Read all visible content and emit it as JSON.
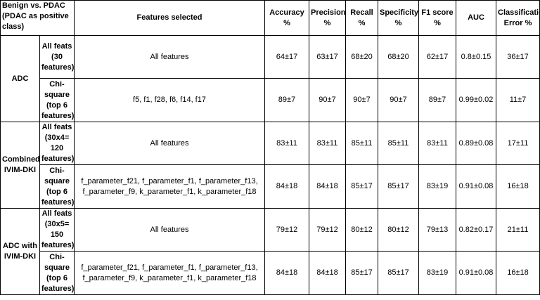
{
  "table": {
    "corner_header": "Benign vs. PDAC (PDAC as positive class)",
    "columns": {
      "features": "Features selected",
      "accuracy": "Accuracy %",
      "precision": "Precision %",
      "recall": "Recall %",
      "specificity": "Specificity %",
      "f1": "F1 score %",
      "auc": "AUC",
      "error": "Classification Error %"
    },
    "groups": [
      {
        "name": "ADC",
        "rows": [
          {
            "subset": "All feats (30 features)",
            "features": "All features",
            "accuracy": "64±17",
            "precision": "63±17",
            "recall": "68±20",
            "specificity": "68±20",
            "f1": "62±17",
            "auc": "0.8±0.15",
            "error": "36±17"
          },
          {
            "subset": "Chi-square (top 6 features)",
            "features": "f5, f1, f28, f6, f14, f17",
            "accuracy": "89±7",
            "precision": "90±7",
            "recall": "90±7",
            "specificity": "90±7",
            "f1": "89±7",
            "auc": "0.99±0.02",
            "error": "11±7"
          }
        ]
      },
      {
        "name": "Combined IVIM-DKI",
        "rows": [
          {
            "subset": "All feats (30x4= 120 features)",
            "features": "All features",
            "accuracy": "83±11",
            "precision": "83±11",
            "recall": "85±11",
            "specificity": "85±11",
            "f1": "83±11",
            "auc": "0.89±0.08",
            "error": "17±11"
          },
          {
            "subset": "Chi-square (top 6 features)",
            "features": "f_parameter_f21, f_parameter_f1, f_parameter_f13, f_parameter_f9, k_parameter_f1, k_parameter_f18",
            "accuracy": "84±18",
            "precision": "84±18",
            "recall": "85±17",
            "specificity": "85±17",
            "f1": "83±19",
            "auc": "0.91±0.08",
            "error": "16±18"
          }
        ]
      },
      {
        "name": "ADC with IVIM-DKI",
        "rows": [
          {
            "subset": "All feats (30x5= 150 features)",
            "features": "All features",
            "accuracy": "79±12",
            "precision": "79±12",
            "recall": "80±12",
            "specificity": "80±12",
            "f1": "79±13",
            "auc": "0.82±0.17",
            "error": "21±11"
          },
          {
            "subset": "Chi-square (top 6 features)",
            "features": "f_parameter_f21, f_parameter_f1, f_parameter_f13, f_parameter_f9, k_parameter_f1, k_parameter_f18",
            "accuracy": "84±18",
            "precision": "84±18",
            "recall": "85±17",
            "specificity": "85±17",
            "f1": "83±19",
            "auc": "0.91±0.08",
            "error": "16±18"
          }
        ]
      }
    ]
  }
}
